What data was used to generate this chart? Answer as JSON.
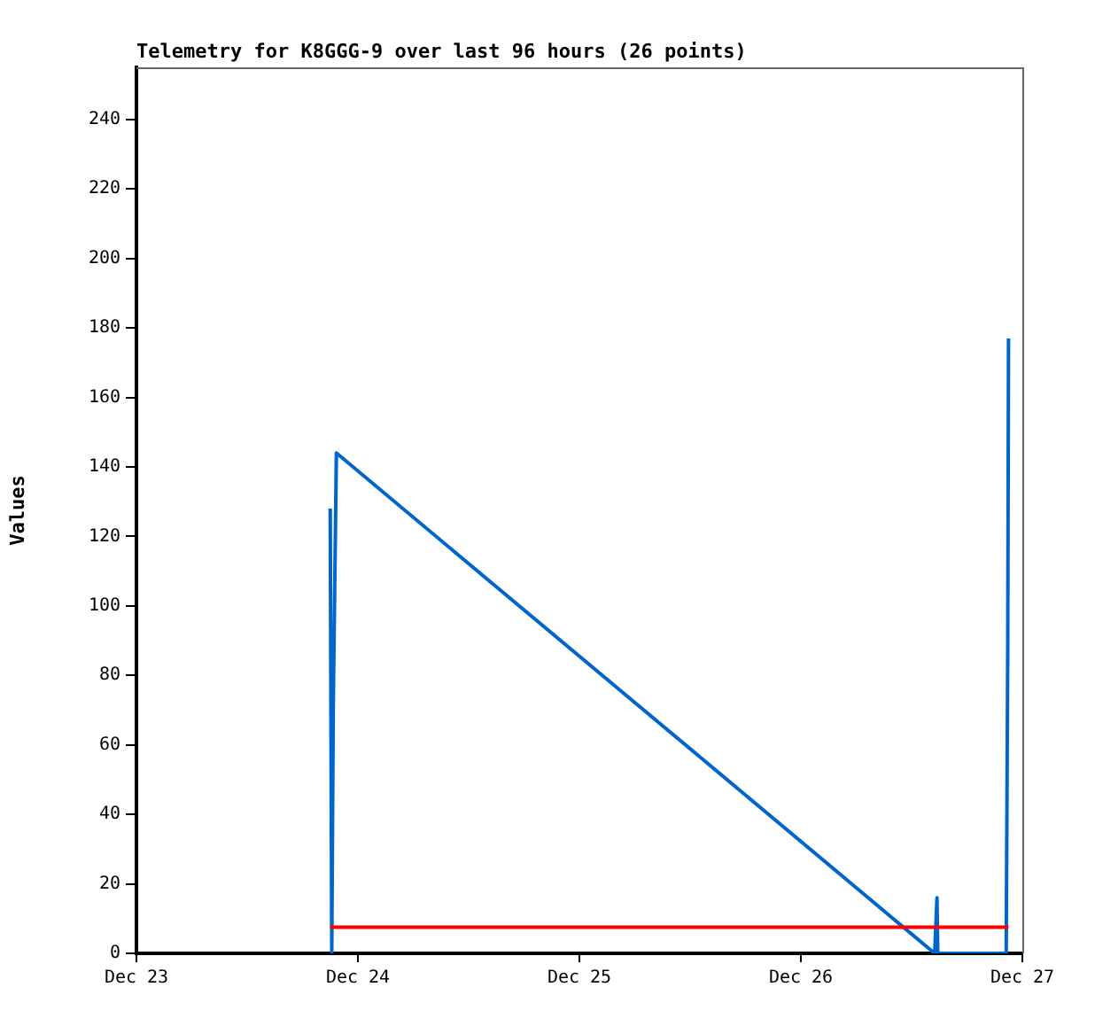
{
  "chart_data": {
    "type": "line",
    "title": "Telemetry for K8GGG-9 over last 96 hours (26 points)",
    "ylabel": "Values",
    "xlim": [
      "--12-23",
      "--12-27"
    ],
    "xticks": [
      {
        "value": "--12-23",
        "label": "Dec 23"
      },
      {
        "value": "--12-24",
        "label": "Dec 24"
      },
      {
        "value": "--12-25",
        "label": "Dec 25"
      },
      {
        "value": "--12-26",
        "label": "Dec 26"
      },
      {
        "value": "--12-27",
        "label": "Dec 27"
      }
    ],
    "ylim": [
      0,
      255
    ],
    "yticks": [
      0,
      20,
      40,
      60,
      80,
      100,
      120,
      140,
      160,
      180,
      200,
      220,
      240
    ],
    "grid": false,
    "legend": false,
    "marker": "none",
    "line_style": "solid",
    "series": [
      {
        "color": "#ff0000",
        "x": [
          "--12-23T21:00",
          "--12-26T22:30"
        ],
        "values": [
          7.5,
          7.5
        ]
      },
      {
        "color": "#0066cc",
        "x": [
          "--12-23T21:00",
          "--12-23T21:10",
          "--12-23T21:20",
          "--12-23T21:40",
          "--12-26T14:30",
          "--12-26T14:45",
          "--12-26T14:50",
          "--12-26T22:15",
          "--12-26T22:25",
          "--12-26T22:30"
        ],
        "values": [
          128,
          0,
          72,
          144,
          0,
          16,
          0,
          0,
          88,
          177
        ]
      }
    ]
  }
}
